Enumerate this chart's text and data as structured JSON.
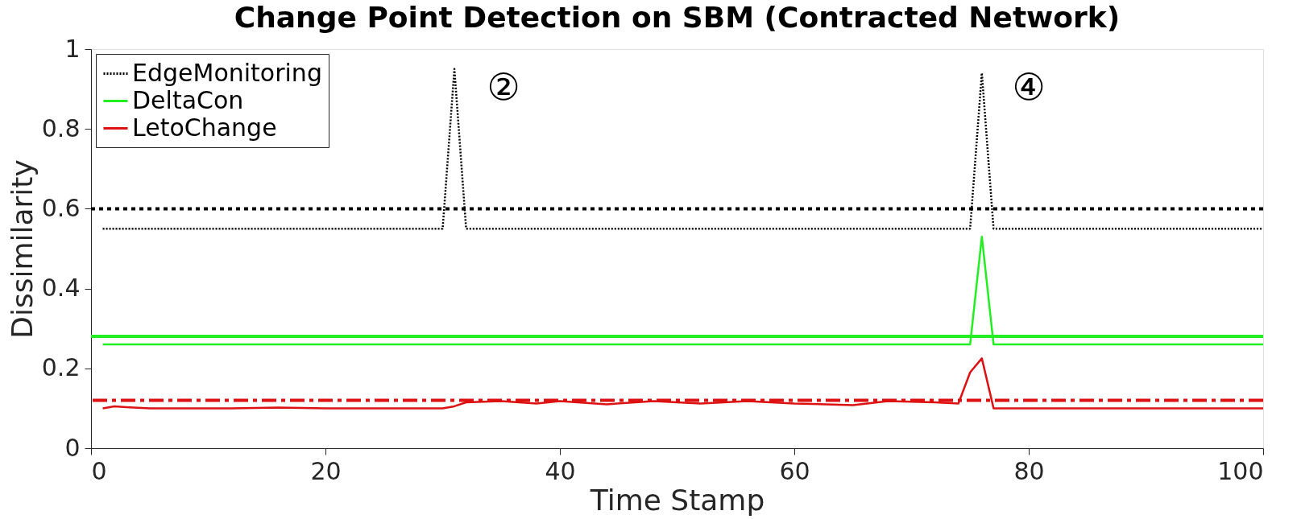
{
  "chart_data": {
    "type": "line",
    "title": "Change Point Detection on SBM (Contracted Network)",
    "xlabel": "Time Stamp",
    "ylabel": "Dissimilarity",
    "xlim": [
      0,
      100
    ],
    "xticks": [
      0,
      20,
      40,
      60,
      80,
      100
    ],
    "ylim": [
      0,
      1
    ],
    "yticks": [
      0,
      0.2,
      0.4,
      0.6,
      0.8,
      1
    ],
    "grid": false,
    "legend": "top left",
    "series": [
      {
        "name": "EdgeMonitoring",
        "color": "#000000",
        "line_style": "dotted",
        "x": [
          1,
          30,
          31,
          32,
          75,
          76,
          77,
          100
        ],
        "values": [
          0.55,
          0.55,
          0.95,
          0.55,
          0.55,
          0.94,
          0.55,
          0.55
        ]
      },
      {
        "name": "DeltaCon",
        "color": "#22ee22",
        "line_style": "solid",
        "x": [
          1,
          75,
          76,
          77,
          100
        ],
        "values": [
          0.26,
          0.26,
          0.53,
          0.26,
          0.26
        ]
      },
      {
        "name": "LetoChange",
        "color": "#dd1111",
        "line_style": "solid",
        "x": [
          1,
          2,
          3,
          5,
          8,
          12,
          16,
          20,
          24,
          28,
          30,
          31,
          32,
          35,
          38,
          40,
          44,
          48,
          52,
          56,
          60,
          65,
          68,
          72,
          74,
          75,
          76,
          77,
          80,
          90,
          100
        ],
        "values": [
          0.1,
          0.105,
          0.103,
          0.1,
          0.1,
          0.1,
          0.102,
          0.1,
          0.1,
          0.1,
          0.1,
          0.105,
          0.115,
          0.118,
          0.112,
          0.118,
          0.11,
          0.118,
          0.112,
          0.118,
          0.112,
          0.108,
          0.118,
          0.115,
          0.112,
          0.19,
          0.225,
          0.1,
          0.1,
          0.1,
          0.1
        ]
      }
    ],
    "ref_lines": [
      {
        "axis": "y",
        "value": 0.6,
        "color": "#000000",
        "line_style": "dotted"
      },
      {
        "axis": "y",
        "value": 0.28,
        "color": "#22ee22",
        "line_style": "solid"
      },
      {
        "axis": "y",
        "value": 0.12,
        "color": "#dd1111",
        "line_style": "dashdot"
      }
    ],
    "annotations": [
      "②",
      "④"
    ]
  }
}
